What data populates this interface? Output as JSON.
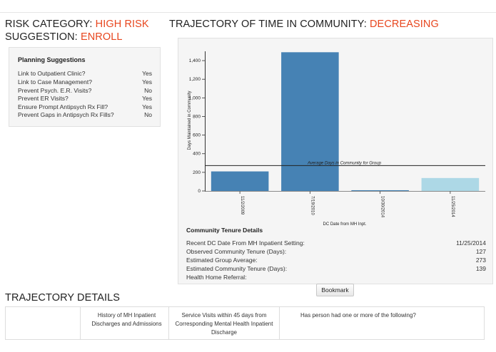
{
  "header": {
    "risk_label": "RISK CATEGORY: ",
    "risk_value": "HIGH RISK",
    "suggestion_label": "SUGGESTION: ",
    "suggestion_value": "ENROLL",
    "trajectory_label": "TRAJECTORY OF TIME IN COMMUNITY: ",
    "trajectory_value": "DECREASING",
    "accent_color": "#e8461e"
  },
  "planning": {
    "title": "Planning Suggestions",
    "rows": [
      {
        "label": "Link to Outpatient Clinic?",
        "value": "Yes"
      },
      {
        "label": "Link to Case Management?",
        "value": "Yes"
      },
      {
        "label": "Prevent Psych. E.R. Visits?",
        "value": "No"
      },
      {
        "label": "Prevent ER Visits?",
        "value": "Yes"
      },
      {
        "label": "Ensure Prompt Antipsych Rx Fill?",
        "value": "Yes"
      },
      {
        "label": "Prevent Gaps in Antipsych Rx Fills?",
        "value": "No"
      }
    ]
  },
  "chart_data": {
    "type": "bar",
    "categories": [
      "11/2/2009",
      "7/19/2010",
      "10/30/2014",
      "11/25/2014"
    ],
    "values": [
      210,
      1490,
      8,
      139
    ],
    "colors": [
      "#4682b4",
      "#4682b4",
      "#4682b4",
      "#add8e6"
    ],
    "xlabel": "DC Date from MH Inpt.",
    "ylabel": "Days Maintained in Community",
    "ylim": [
      0,
      1500
    ],
    "yticks": [
      0,
      200,
      400,
      600,
      800,
      1000,
      1200,
      1400
    ],
    "ytick_labels": [
      "0",
      "200",
      "400",
      "600",
      "800",
      "1,000",
      "1,200",
      "1,400"
    ],
    "reference_line": {
      "value": 273,
      "label": "Average Days in Community for Group"
    },
    "grid": false
  },
  "tenure": {
    "title": "Community Tenure Details",
    "rows": [
      {
        "label": "Recent DC Date From MH Inpatient Setting:",
        "value": "11/25/2014"
      },
      {
        "label": "Observed Community Tenure (Days):",
        "value": "127"
      },
      {
        "label": "Estimated Group Average:",
        "value": "273"
      },
      {
        "label": "Estimated Community Tenure (Days):",
        "value": "139"
      },
      {
        "label": "Health Home Referral:",
        "value": ""
      }
    ]
  },
  "bookmark_label": "Bookmark",
  "details": {
    "title": "TRAJECTORY DETAILS",
    "columns": [
      "",
      "History of MH Inpatient Discharges and Admissions",
      "Service Visits within 45 days from Corresponding Mental Health Inpatient Discharge",
      "Has person had one or more of the following?"
    ]
  }
}
